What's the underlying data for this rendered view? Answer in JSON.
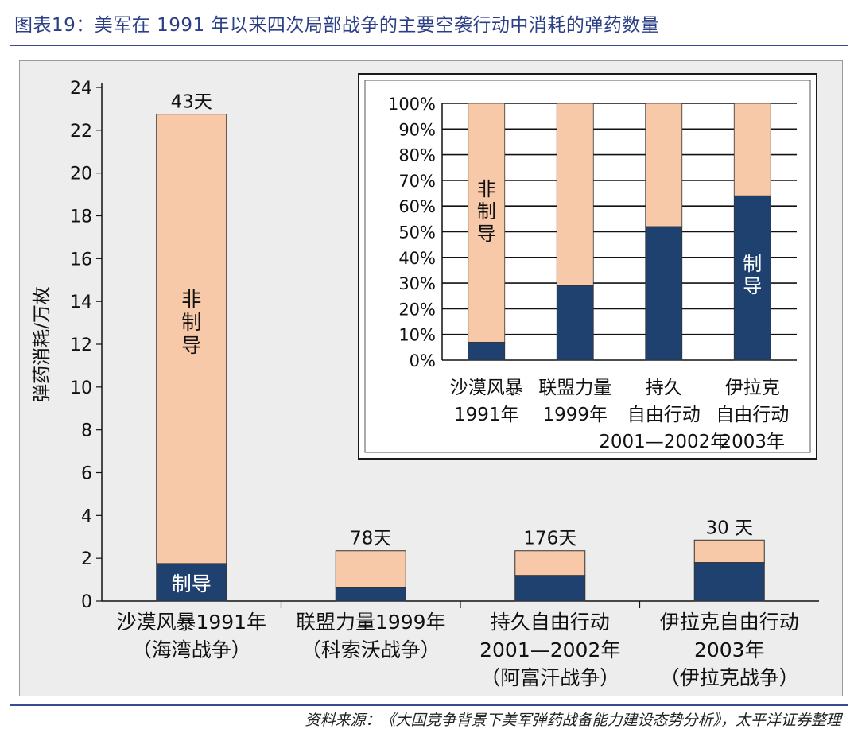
{
  "title": "图表19：美军在 1991 年以来四次局部战争的主要空袭行动中消耗的弹药数量",
  "source": "资料来源：《大国竞争背景下美军弹药战备能力建设态势分析》，太平洋证券整理",
  "colors": {
    "guided": "#1e4170",
    "unguided": "#f7c9a8",
    "title": "#2c3f86",
    "panel_bg": "#ededed",
    "grid": "#111111"
  },
  "chart_data": [
    {
      "type": "bar",
      "stacked": true,
      "ylabel": "弹药消耗/万枚",
      "ylim": [
        0,
        24
      ],
      "yticks": [
        "0",
        "2",
        "4",
        "6",
        "8",
        "10",
        "12",
        "14",
        "16",
        "18",
        "20",
        "22",
        "24"
      ],
      "categories": [
        [
          "沙漠风暴1991年",
          "（海湾战争）"
        ],
        [
          "联盟力量1999年",
          "（科索沃战争）"
        ],
        [
          "持久自由行动",
          "2001—2002年",
          "（阿富汗战争）"
        ],
        [
          "伊拉克自由行动",
          "2003年",
          "（伊拉克战争）"
        ]
      ],
      "series": [
        {
          "name": "制导",
          "values": [
            1.75,
            0.65,
            1.2,
            1.8
          ]
        },
        {
          "name": "非制导",
          "values": [
            21.0,
            1.7,
            1.15,
            1.05
          ]
        }
      ],
      "top_labels": [
        "43天",
        "78天",
        "176天",
        "30 天"
      ],
      "inner_labels": {
        "unguided": "非制导",
        "guided": "制导"
      },
      "grid": "horizontal"
    },
    {
      "type": "bar",
      "stacked": true,
      "percent": true,
      "ylim": [
        0,
        100
      ],
      "yticks": [
        "0%",
        "10%",
        "20%",
        "30%",
        "40%",
        "50%",
        "60%",
        "70%",
        "80%",
        "90%",
        "100%"
      ],
      "categories": [
        [
          "沙漠风暴",
          "1991年"
        ],
        [
          "联盟力量",
          "1999年"
        ],
        [
          "持久",
          "自由行动",
          "2001—2002年"
        ],
        [
          "伊拉克",
          "自由行动",
          "2003年"
        ]
      ],
      "series": [
        {
          "name": "制导",
          "values": [
            7,
            29,
            52,
            64
          ]
        },
        {
          "name": "非制导",
          "values": [
            93,
            71,
            48,
            36
          ]
        }
      ],
      "inner_labels": {
        "unguided": "非制导",
        "guided": "制导"
      },
      "grid": "horizontal"
    }
  ]
}
